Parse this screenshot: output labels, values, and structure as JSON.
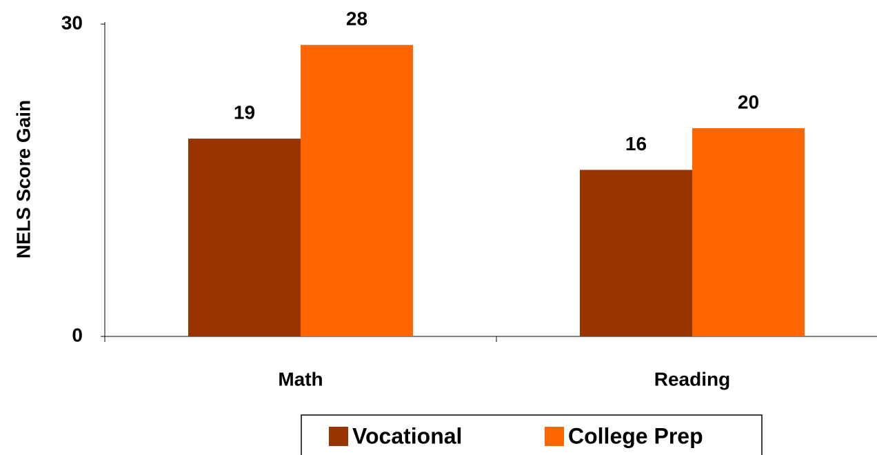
{
  "chart_data": {
    "type": "bar",
    "ylabel": "NELS Score Gain",
    "categories": [
      "Math",
      "Reading"
    ],
    "series": [
      {
        "name": "Vocational",
        "color": "#993300",
        "values": [
          19,
          16
        ]
      },
      {
        "name": "College Prep",
        "color": "#ff6600",
        "values": [
          28,
          20
        ]
      }
    ],
    "ylim": [
      0,
      30
    ],
    "yticks": [
      0,
      30
    ],
    "grid": false,
    "legend": "bottom"
  }
}
